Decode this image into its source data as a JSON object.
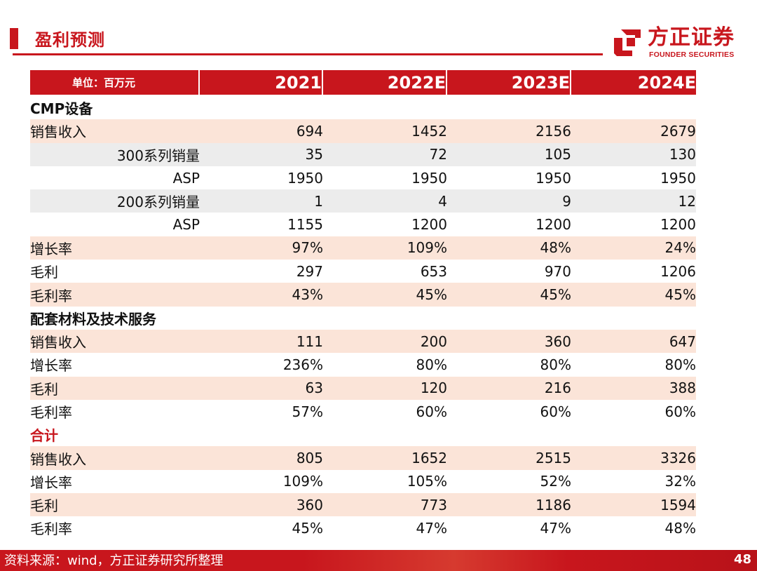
{
  "header": {
    "title": "盈利预测",
    "logo_cn": "方正证券",
    "logo_en": "FOUNDER SECURITIES"
  },
  "table": {
    "columns": [
      "单位：百万元",
      "2021",
      "2022E",
      "2023E",
      "2024E"
    ],
    "rows": [
      {
        "label": "CMP设备",
        "values": [
          "",
          "",
          "",
          ""
        ],
        "kind": "section",
        "shade": "none"
      },
      {
        "label": "销售收入",
        "values": [
          "694",
          "1452",
          "2156",
          "2679"
        ],
        "kind": "item",
        "shade": "pink"
      },
      {
        "label": "300系列销量",
        "values": [
          "35",
          "72",
          "105",
          "130"
        ],
        "kind": "sub",
        "shade": "grey"
      },
      {
        "label": "ASP",
        "values": [
          "1950",
          "1950",
          "1950",
          "1950"
        ],
        "kind": "sub",
        "shade": "none"
      },
      {
        "label": "200系列销量",
        "values": [
          "1",
          "4",
          "9",
          "12"
        ],
        "kind": "sub",
        "shade": "grey"
      },
      {
        "label": "ASP",
        "values": [
          "1155",
          "1200",
          "1200",
          "1200"
        ],
        "kind": "sub",
        "shade": "none"
      },
      {
        "label": "增长率",
        "values": [
          "97%",
          "109%",
          "48%",
          "24%"
        ],
        "kind": "item",
        "shade": "pink"
      },
      {
        "label": "毛利",
        "values": [
          "297",
          "653",
          "970",
          "1206"
        ],
        "kind": "item",
        "shade": "none"
      },
      {
        "label": "毛利率",
        "values": [
          "43%",
          "45%",
          "45%",
          "45%"
        ],
        "kind": "item",
        "shade": "pink"
      },
      {
        "label": "配套材料及技术服务",
        "values": [
          "",
          "",
          "",
          ""
        ],
        "kind": "section",
        "shade": "none"
      },
      {
        "label": "销售收入",
        "values": [
          "111",
          "200",
          "360",
          "647"
        ],
        "kind": "item",
        "shade": "pink"
      },
      {
        "label": "增长率",
        "values": [
          "236%",
          "80%",
          "80%",
          "80%"
        ],
        "kind": "item",
        "shade": "none"
      },
      {
        "label": "毛利",
        "values": [
          "63",
          "120",
          "216",
          "388"
        ],
        "kind": "item",
        "shade": "pink"
      },
      {
        "label": "毛利率",
        "values": [
          "57%",
          "60%",
          "60%",
          "60%"
        ],
        "kind": "item",
        "shade": "none"
      },
      {
        "label": "合计",
        "values": [
          "",
          "",
          "",
          ""
        ],
        "kind": "section-red",
        "shade": "none"
      },
      {
        "label": "销售收入",
        "values": [
          "805",
          "1652",
          "2515",
          "3326"
        ],
        "kind": "item",
        "shade": "pink"
      },
      {
        "label": "增长率",
        "values": [
          "109%",
          "105%",
          "52%",
          "32%"
        ],
        "kind": "item",
        "shade": "none"
      },
      {
        "label": "毛利",
        "values": [
          "360",
          "773",
          "1186",
          "1594"
        ],
        "kind": "item",
        "shade": "pink"
      },
      {
        "label": "毛利率",
        "values": [
          "45%",
          "47%",
          "47%",
          "48%"
        ],
        "kind": "item",
        "shade": "none"
      }
    ]
  },
  "footer": {
    "source": "资料来源：wind，方正证券研究所整理",
    "page": "48"
  },
  "colors": {
    "accent": "#c8161d",
    "row_pink": "#fbe4d8",
    "row_grey": "#ececec"
  },
  "icons": {
    "logo": "founder-logo-icon"
  }
}
